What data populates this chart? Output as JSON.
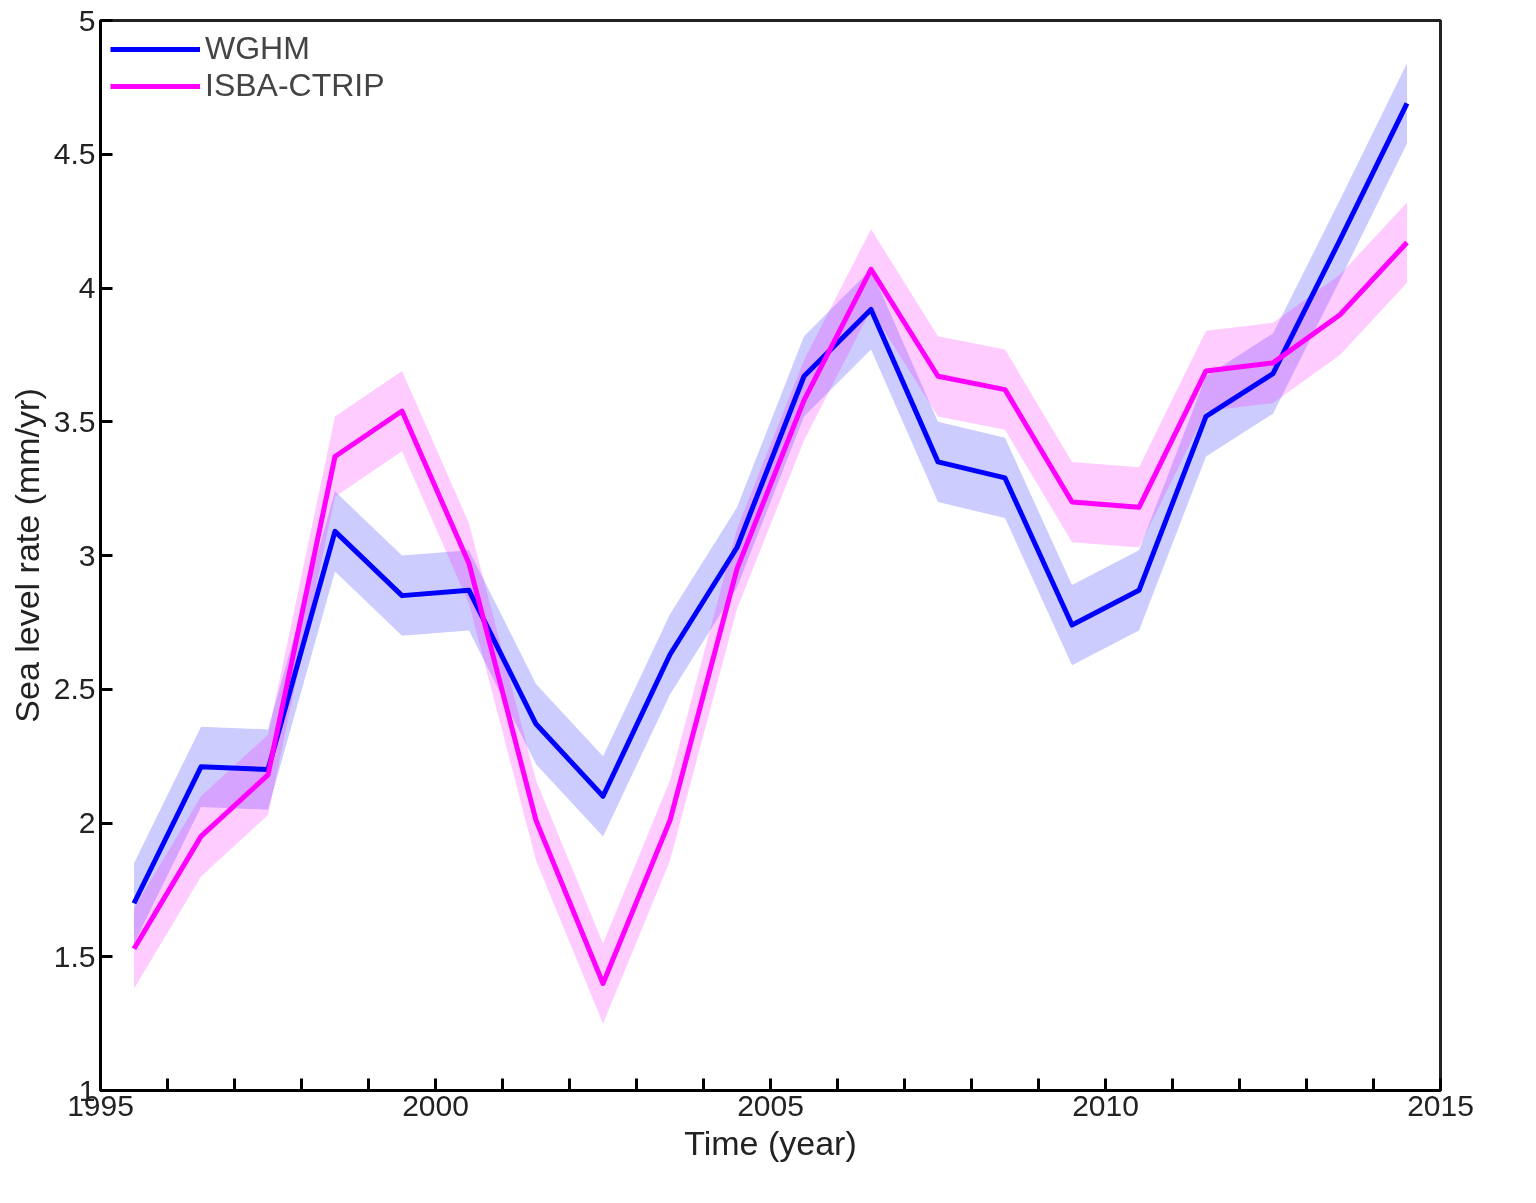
{
  "chart_data": {
    "type": "line",
    "xlabel": "Time (year)",
    "ylabel": "Sea level rate (mm/yr)",
    "x": [
      1995.5,
      1996.5,
      1997.5,
      1998.5,
      1999.5,
      2000.5,
      2001.5,
      2002.5,
      2003.5,
      2004.5,
      2005.5,
      2006.5,
      2007.5,
      2008.5,
      2009.5,
      2010.5,
      2011.5,
      2012.5,
      2013.5,
      2014.5
    ],
    "series": [
      {
        "name": "WGHM",
        "color": "#0000ff",
        "values": [
          1.7,
          2.21,
          2.2,
          3.09,
          2.85,
          2.87,
          2.37,
          2.1,
          2.63,
          3.03,
          3.67,
          3.92,
          3.35,
          3.29,
          2.74,
          2.87,
          3.52,
          3.68,
          4.18,
          4.69
        ],
        "lower": [
          1.55,
          2.06,
          2.05,
          2.94,
          2.7,
          2.72,
          2.22,
          1.95,
          2.48,
          2.88,
          3.52,
          3.77,
          3.2,
          3.14,
          2.59,
          2.72,
          3.37,
          3.53,
          4.03,
          4.54
        ],
        "upper": [
          1.85,
          2.36,
          2.35,
          3.24,
          3.0,
          3.02,
          2.52,
          2.25,
          2.78,
          3.18,
          3.82,
          4.07,
          3.5,
          3.44,
          2.89,
          3.02,
          3.67,
          3.83,
          4.33,
          4.84
        ]
      },
      {
        "name": "ISBA-CTRIP",
        "color": "#ff00ff",
        "values": [
          1.53,
          1.95,
          2.18,
          3.37,
          3.54,
          2.97,
          2.01,
          1.4,
          2.01,
          2.95,
          3.58,
          4.07,
          3.67,
          3.62,
          3.2,
          3.18,
          3.69,
          3.72,
          3.9,
          4.17
        ],
        "lower": [
          1.38,
          1.8,
          2.03,
          3.22,
          3.39,
          2.82,
          1.86,
          1.25,
          1.86,
          2.8,
          3.43,
          3.92,
          3.52,
          3.47,
          3.05,
          3.03,
          3.54,
          3.57,
          3.75,
          4.02
        ],
        "upper": [
          1.68,
          2.1,
          2.33,
          3.52,
          3.69,
          3.12,
          2.16,
          1.55,
          2.16,
          3.1,
          3.73,
          4.22,
          3.82,
          3.77,
          3.35,
          3.33,
          3.84,
          3.87,
          4.05,
          4.32
        ]
      }
    ],
    "xlim": [
      1995,
      2015
    ],
    "xticks": [
      1995,
      {
        "value": 1996,
        "label": null
      },
      {
        "value": 1997,
        "label": null
      },
      {
        "value": 1998,
        "label": null
      },
      {
        "value": 1999,
        "label": null
      },
      2000,
      {
        "value": 2001,
        "label": null
      },
      {
        "value": 2002,
        "label": null
      },
      {
        "value": 2003,
        "label": null
      },
      {
        "value": 2004,
        "label": null
      },
      2005,
      {
        "value": 2006,
        "label": null
      },
      {
        "value": 2007,
        "label": null
      },
      {
        "value": 2008,
        "label": null
      },
      {
        "value": 2009,
        "label": null
      },
      2010,
      {
        "value": 2011,
        "label": null
      },
      {
        "value": 2012,
        "label": null
      },
      {
        "value": 2013,
        "label": null
      },
      {
        "value": 2014,
        "label": null
      },
      2015
    ],
    "ylim": [
      1,
      5
    ],
    "yticks": [
      1,
      1.5,
      2,
      2.5,
      3,
      3.5,
      4,
      4.5,
      5
    ],
    "legend": "top left",
    "line_style": "solid",
    "marker": "none"
  }
}
